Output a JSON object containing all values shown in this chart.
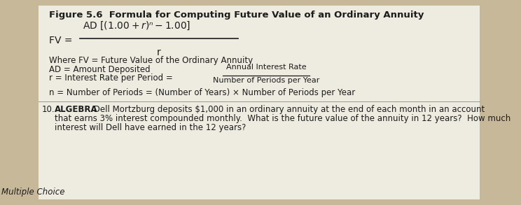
{
  "bg_color": "#c8b89a",
  "paper_color": "#eeebe0",
  "title": "Figure 5.6  Formula for Computing Future Value of an Ordinary Annuity",
  "where_fv": "Where FV = Future Value of the Ordinary Annuity",
  "where_ad": "AD = Amount Deposited",
  "where_r_prefix": "r = Interest Rate per Period = ",
  "where_r_num": "Annual Interest Rate",
  "where_r_den": "Number of Periods per Year",
  "where_n": "n = Number of Periods = (Number of Years) × Number of Periods per Year",
  "problem_number": "10.",
  "problem_bold": "ALGEBRA",
  "problem_rest": " Dell Mortzburg deposits $1,000 in an ordinary annuity at the end of each month in an account",
  "problem_line2": "that earns 3% interest compounded monthly.  What is the future value of the annuity in 12 years?  How much",
  "problem_line3": "interest will Dell have earned in the 12 years?",
  "footer": "Multiple Choice",
  "title_fontsize": 9.5,
  "body_fontsize": 8.5,
  "formula_fontsize": 10.0,
  "small_fontsize": 8.0
}
